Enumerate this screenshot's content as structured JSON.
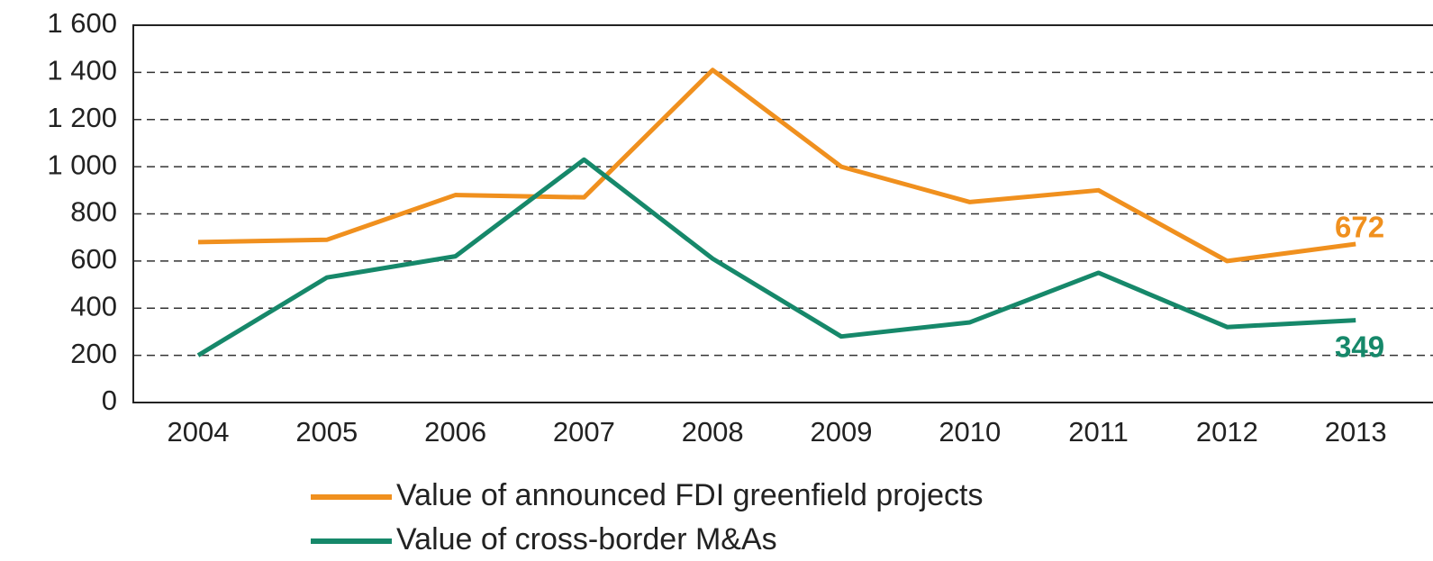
{
  "chart_data": {
    "type": "line",
    "categories": [
      "2004",
      "2005",
      "2006",
      "2007",
      "2008",
      "2009",
      "2010",
      "2011",
      "2012",
      "2013"
    ],
    "series": [
      {
        "name": "Value of announced FDI greenfield projects",
        "color": "#f0901e",
        "values": [
          680,
          690,
          880,
          870,
          1410,
          1000,
          850,
          900,
          600,
          672
        ]
      },
      {
        "name": "Value of cross-border M&As",
        "color": "#16886a",
        "values": [
          200,
          530,
          620,
          1030,
          610,
          280,
          340,
          550,
          320,
          349
        ]
      }
    ],
    "ylim": [
      0,
      1600
    ],
    "yticks": [
      0,
      200,
      400,
      600,
      800,
      {
        "value": 1000,
        "label": "1 000"
      },
      {
        "value": 1200,
        "label": "1 200"
      },
      {
        "value": 1400,
        "label": "1 400"
      },
      {
        "value": 1600,
        "label": "1 600"
      }
    ],
    "grid": true
  }
}
